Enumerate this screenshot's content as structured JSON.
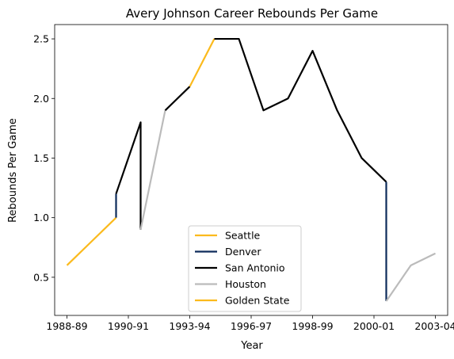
{
  "chart_data": {
    "type": "line",
    "title": "Avery Johnson Career Rebounds Per Game",
    "xlabel": "Year",
    "ylabel": "Rebounds Per Game",
    "x_tick_labels": [
      "1988-89",
      "1990-91",
      "1993-94",
      "1996-97",
      "1998-99",
      "2000-01",
      "2003-04"
    ],
    "y_ticks": [
      0.5,
      1.0,
      1.5,
      2.0,
      2.5
    ],
    "y_tick_labels": [
      "0.5",
      "1.0",
      "1.5",
      "2.0",
      "2.5"
    ],
    "x_range": [
      -0.5,
      15.5
    ],
    "ylim": [
      0.18,
      2.62
    ],
    "grid": false,
    "legend_position": "lower center",
    "series": [
      {
        "name": "Seattle",
        "color": "#FBBA1D",
        "points": [
          {
            "x": 0,
            "y": 0.6
          },
          {
            "x": 2,
            "y": 1.0
          }
        ]
      },
      {
        "name": "Denver",
        "color": "#0D2B5B",
        "points": [
          {
            "x": 2,
            "y": 1.0
          },
          {
            "x": 2,
            "y": 1.2
          }
        ]
      },
      {
        "name": "San Antonio",
        "color": "#000000",
        "points": [
          {
            "x": 2,
            "y": 1.2
          },
          {
            "x": 3,
            "y": 1.8
          },
          {
            "x": 3,
            "y": 0.9
          }
        ]
      },
      {
        "name": "Houston",
        "color": "#BBBBBB",
        "points": [
          {
            "x": 3,
            "y": 0.9
          },
          {
            "x": 4,
            "y": 1.9
          }
        ]
      },
      {
        "name": "San Antonio",
        "color": "#000000",
        "points": [
          {
            "x": 4,
            "y": 1.9
          },
          {
            "x": 5,
            "y": 2.1
          }
        ]
      },
      {
        "name": "Golden State",
        "color": "#FBBA1D",
        "points": [
          {
            "x": 5,
            "y": 2.1
          },
          {
            "x": 6,
            "y": 2.5
          }
        ]
      },
      {
        "name": "San Antonio",
        "color": "#000000",
        "points": [
          {
            "x": 6,
            "y": 2.5
          },
          {
            "x": 7,
            "y": 2.5
          },
          {
            "x": 8,
            "y": 1.9
          },
          {
            "x": 9,
            "y": 2.0
          },
          {
            "x": 10,
            "y": 2.4
          },
          {
            "x": 11,
            "y": 1.9
          },
          {
            "x": 12,
            "y": 1.5
          },
          {
            "x": 13,
            "y": 1.3
          }
        ]
      },
      {
        "name": "Denver",
        "color": "#0D2B5B",
        "points": [
          {
            "x": 13,
            "y": 1.3
          },
          {
            "x": 13,
            "y": 0.3
          }
        ]
      },
      {
        "name": "Houston",
        "color": "#BBBBBB",
        "points": [
          {
            "x": 13,
            "y": 0.3
          },
          {
            "x": 14,
            "y": 0.6
          },
          {
            "x": 15,
            "y": 0.7
          }
        ]
      }
    ],
    "legend": [
      {
        "label": "Seattle",
        "color": "#FBBA1D"
      },
      {
        "label": "Denver",
        "color": "#0D2B5B"
      },
      {
        "label": "San Antonio",
        "color": "#000000"
      },
      {
        "label": "Houston",
        "color": "#BBBBBB"
      },
      {
        "label": "Golden State",
        "color": "#FBBA1D"
      }
    ]
  }
}
